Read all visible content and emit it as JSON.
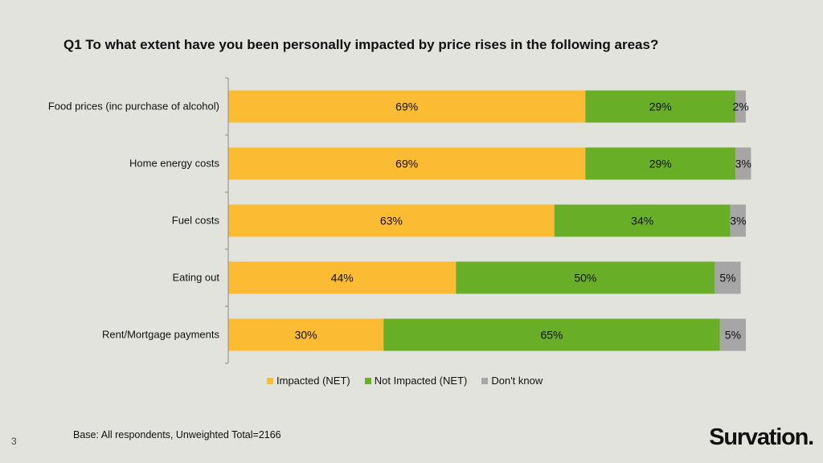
{
  "title": "Q1 To what extent have you been personally impacted by price rises in the following areas?",
  "chart_data": {
    "type": "bar",
    "orientation": "horizontal",
    "stacked": true,
    "percent_stacked": true,
    "categories": [
      "Food prices (inc purchase of alcohol)",
      "Home energy costs",
      "Fuel costs",
      "Eating out",
      "Rent/Mortgage payments"
    ],
    "series": [
      {
        "name": "Impacted (NET)",
        "color": "#fbbb33",
        "values": [
          69,
          69,
          63,
          44,
          30
        ]
      },
      {
        "name": "Not Impacted (NET)",
        "color": "#68ae27",
        "values": [
          29,
          29,
          34,
          50,
          65
        ]
      },
      {
        "name": "Don't know",
        "color": "#a6a6a6",
        "values": [
          2,
          3,
          3,
          5,
          5
        ]
      }
    ],
    "value_format": "{v}%",
    "xlim": [
      0,
      100
    ],
    "legend_position": "bottom",
    "grid": false
  },
  "base_note": "Base: All respondents, Unweighted Total=2166",
  "page_number": "3",
  "logo_text": "Survation."
}
